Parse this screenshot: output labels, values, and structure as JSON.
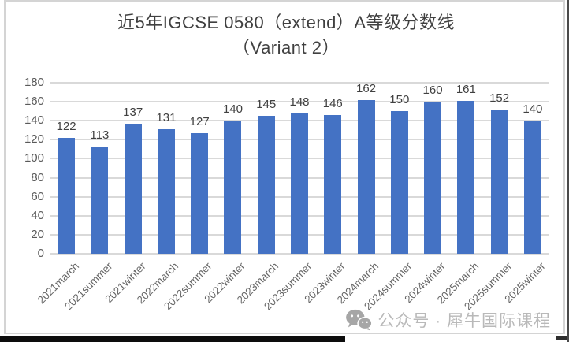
{
  "title": {
    "line1": "近5年IGCSE 0580（extend）A等级分数线",
    "line2": "（Variant 2）"
  },
  "chart_data": {
    "type": "bar",
    "title": "近5年IGCSE 0580（extend）A等级分数线（Variant 2）",
    "categories": [
      "2021march",
      "2021summer",
      "2021winter",
      "2022march",
      "2022summer",
      "2022winter",
      "2023march",
      "2023summer",
      "2023winter",
      "2024march",
      "2024summer",
      "2024winter",
      "2025march",
      "2025summer",
      "2025winter"
    ],
    "values": [
      122,
      113,
      137,
      131,
      127,
      140,
      145,
      148,
      146,
      162,
      150,
      160,
      161,
      152,
      140
    ],
    "xlabel": "",
    "ylabel": "",
    "ylim": [
      0,
      180
    ],
    "yticks": [
      0,
      20,
      40,
      60,
      80,
      100,
      120,
      140,
      160,
      180
    ],
    "grid": true,
    "legend": false,
    "value_labels": true,
    "bar_color": "#4472C4",
    "gridline_color": "#D9D9D9"
  },
  "watermark": {
    "icon": "wechat-icon",
    "text": "公众号 · 犀牛国际课程"
  },
  "colors": {
    "bar": "#4472C4",
    "grid": "#D9D9D9",
    "axis_text": "#595959",
    "value_text": "#404040",
    "title_text": "#404040",
    "watermark_text": "#b9b9b9",
    "frame_border": "#d4d4d4"
  }
}
